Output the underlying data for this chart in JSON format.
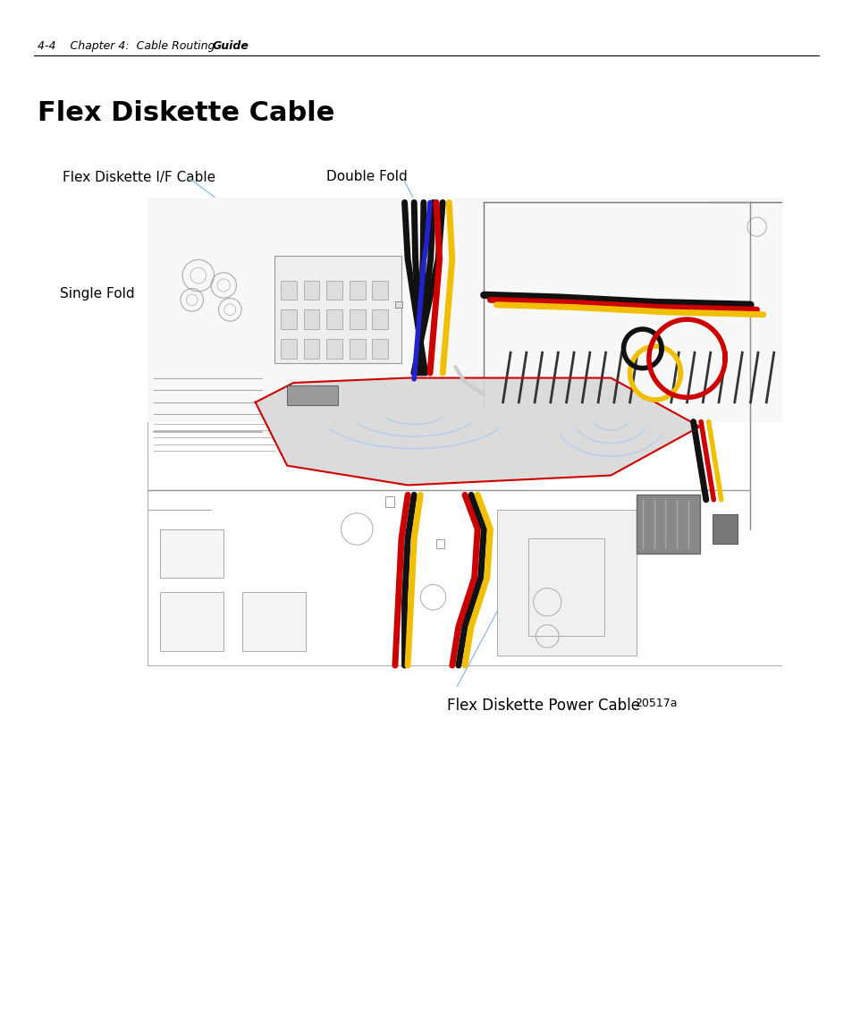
{
  "page_bg": "#ffffff",
  "header_text": "4-4    Chapter 4:  Cable Routing ",
  "header_bold": "Guide",
  "title": "Flex Diskette Cable",
  "label_if_cable": "Flex Diskette I/F Cable",
  "label_double_fold": "Double Fold",
  "label_single_fold": "Single Fold",
  "label_power_cable": "Flex Diskette Power Cable",
  "label_fig_id": "20517a",
  "text_color": "#000000",
  "leader_color": "#88bbdd",
  "header_fontsize": 9,
  "label_fontsize": 11,
  "title_fontsize": 22
}
